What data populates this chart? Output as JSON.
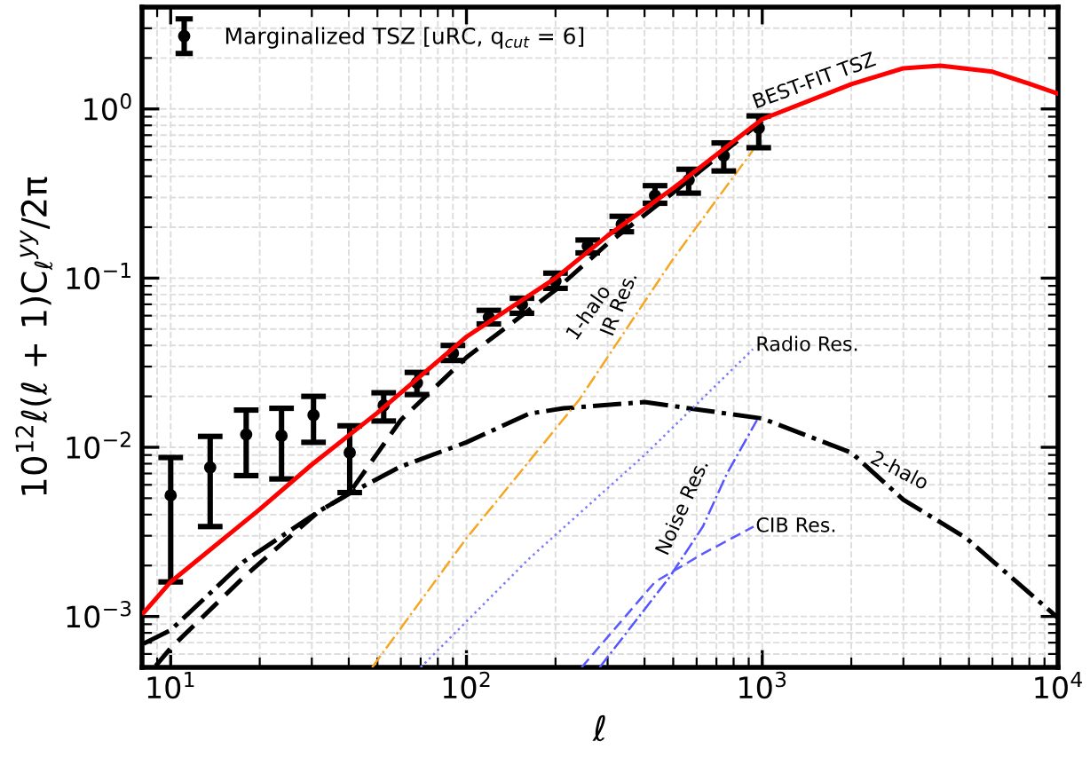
{
  "chart_data": {
    "type": "line",
    "xlabel": "ℓ",
    "ylabel": "10$^{12}$ℓ(ℓ + 1)C$_{ℓ}$$^{yy}$/2π",
    "log": "xy",
    "grid": true,
    "legend": "top left",
    "xlim": [
      8,
      10000
    ],
    "ylim": [
      0.0005,
      4
    ],
    "xticks": [
      {
        "value": 10,
        "label": "10$^{1}$"
      },
      {
        "value": 100,
        "label": "10$^{2}$"
      },
      {
        "value": 1000,
        "label": "10$^{3}$"
      },
      {
        "value": 10000,
        "label": "10$^{4}$"
      }
    ],
    "yticks": [
      {
        "value": 0.001,
        "label": "10$^{−3}$"
      },
      {
        "value": 0.01,
        "label": "10$^{−2}$"
      },
      {
        "value": 0.1,
        "label": "10$^{−1}$"
      },
      {
        "value": 1,
        "label": "10$^{0}$"
      }
    ],
    "series": [
      {
        "type": "scatter",
        "name": "Marginalized TSZ [uRC, q$_{cut}$ = 6]",
        "color": "#000000",
        "marker": "circle",
        "x": [
          10,
          13.6,
          18,
          23.7,
          30.4,
          40.3,
          52.5,
          68,
          90,
          119,
          154,
          200,
          257,
          335,
          434,
          564,
          741,
          973
        ],
        "values": [
          0.0052,
          0.0076,
          0.0119,
          0.0117,
          0.0155,
          0.0093,
          0.0177,
          0.024,
          0.036,
          0.0586,
          0.07,
          0.096,
          0.155,
          0.208,
          0.307,
          0.38,
          0.53,
          0.77
        ],
        "errors": [
          [
            0.0016,
            0.0087
          ],
          [
            0.0034,
            0.0116
          ],
          [
            0.0068,
            0.0166
          ],
          [
            0.0065,
            0.017
          ],
          [
            0.0107,
            0.02
          ],
          [
            0.0054,
            0.0134
          ],
          [
            0.0143,
            0.021
          ],
          [
            0.0205,
            0.0277
          ],
          [
            0.0326,
            0.04
          ],
          [
            0.0536,
            0.0645
          ],
          [
            0.062,
            0.076
          ],
          [
            0.087,
            0.107
          ],
          [
            0.141,
            0.168
          ],
          [
            0.188,
            0.232
          ],
          [
            0.277,
            0.352
          ],
          [
            0.318,
            0.44
          ],
          [
            0.43,
            0.63
          ],
          [
            0.59,
            0.91
          ]
        ]
      },
      {
        "name": "BEST-FIT TSZ",
        "color": "#ff0000",
        "line_style": "solid",
        "x": [
          8.1,
          10,
          20,
          30,
          50,
          100,
          200,
          300,
          500,
          1000,
          2000,
          3000,
          4000,
          6000,
          8000,
          10000
        ],
        "values": [
          0.00105,
          0.0016,
          0.0043,
          0.0079,
          0.016,
          0.045,
          0.1,
          0.178,
          0.34,
          0.87,
          1.4,
          1.74,
          1.8,
          1.66,
          1.41,
          1.23
        ]
      },
      {
        "name": "1-halo",
        "color": "#000000",
        "line_style": "dashed",
        "x": [
          8.9,
          10,
          17.6,
          31.8,
          40,
          60,
          100,
          200,
          300,
          500,
          1000
        ],
        "values": [
          0.00051,
          0.00065,
          0.0017,
          0.0042,
          0.0053,
          0.0145,
          0.034,
          0.085,
          0.16,
          0.32,
          0.85
        ]
      },
      {
        "name": "2-halo",
        "color": "#000000",
        "line_style": "dashdot",
        "x": [
          8.1,
          10,
          17.6,
          31.8,
          40,
          60,
          100,
          163,
          213,
          400,
          1000,
          2000,
          3000,
          4900,
          10000
        ],
        "values": [
          0.00069,
          0.00083,
          0.0021,
          0.0042,
          0.0053,
          0.0077,
          0.0107,
          0.0158,
          0.017,
          0.0185,
          0.0148,
          0.0093,
          0.0049,
          0.0029,
          0.00098
        ]
      },
      {
        "name": "IR Res.",
        "color": "#f5a623",
        "line_style": "dashdot",
        "x": [
          48,
          100,
          240,
          500,
          930
        ],
        "values": [
          0.0005,
          0.0029,
          0.019,
          0.13,
          0.57
        ]
      },
      {
        "name": "Radio Res.",
        "color": "#7b7bff",
        "line_style": "dotted",
        "x": [
          70,
          163,
          400,
          930
        ],
        "values": [
          0.0005,
          0.0022,
          0.009,
          0.038
        ]
      },
      {
        "name": "Noise Res.",
        "color": "#5555ff",
        "line_style": "dashdot",
        "x": [
          282,
          485,
          630,
          760,
          960
        ],
        "values": [
          0.0005,
          0.0017,
          0.0034,
          0.007,
          0.0145
        ]
      },
      {
        "name": "CIB Res.",
        "color": "#5a5aff",
        "line_style": "dashed",
        "x": [
          245,
          434,
          630,
          935
        ],
        "values": [
          0.0005,
          0.0016,
          0.00235,
          0.0034
        ]
      }
    ]
  }
}
